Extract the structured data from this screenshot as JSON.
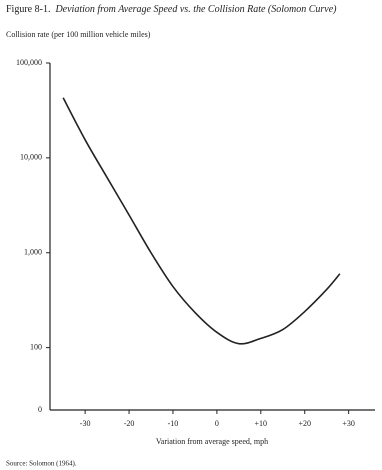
{
  "chart_data": {
    "type": "line",
    "figure_label": "Figure 8-1.",
    "title": "Deviation from Average Speed vs. the Collision Rate (Solomon Curve)",
    "y_label": "Collision rate (per 100 million vehicle miles)",
    "x_label": "Variation from average speed, mph",
    "source": "Source: Solomon (1964).",
    "yscale": "log",
    "ylim": [
      22,
      100000
    ],
    "yticks": [
      100,
      {
        "value": 1000,
        "label": "1,000"
      },
      {
        "value": 10000,
        "label": "10,000"
      },
      {
        "value": 100000,
        "label": "100,000"
      }
    ],
    "y_origin_label": "0",
    "xlim": [
      -38,
      36
    ],
    "xticks": [
      -30,
      -20,
      -10,
      0,
      {
        "value": 10,
        "label": "+10"
      },
      {
        "value": 20,
        "label": "+20"
      },
      {
        "value": 30,
        "label": "+30"
      }
    ],
    "x": [
      -35,
      -30,
      -25,
      -20,
      -15,
      -10,
      -5,
      0,
      5,
      10,
      15,
      20,
      25,
      28
    ],
    "series": [
      {
        "color": "#222222",
        "values": [
          43000,
          15500,
          6200,
          2500,
          1000,
          440,
          235,
          145,
          110,
          125,
          155,
          240,
          410,
          600
        ]
      }
    ]
  }
}
